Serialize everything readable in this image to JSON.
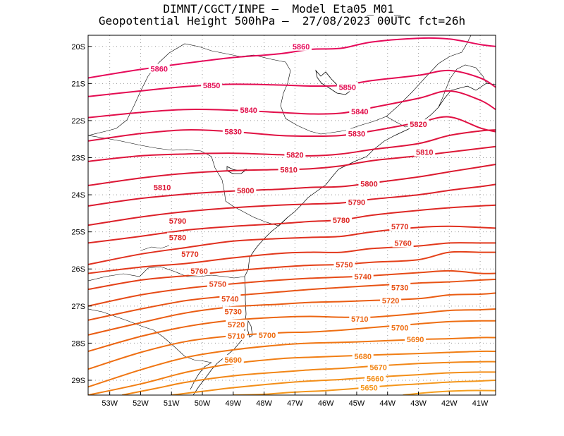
{
  "title": {
    "line1": "DIMNT/CGCT/INPE –  Model Eta05_M01_",
    "line2": "Geopotential Height 500hPa –  27/08/2023 00UTC fct=26h"
  },
  "axes": {
    "lon_labels": [
      "53W",
      "52W",
      "51W",
      "50W",
      "49W",
      "48W",
      "47W",
      "46W",
      "45W",
      "44W",
      "43W",
      "42W",
      "41W"
    ],
    "lat_labels": [
      "20S",
      "21S",
      "22S",
      "23S",
      "24S",
      "25S",
      "26S",
      "27S",
      "28S",
      "29S"
    ],
    "lon_range": [
      -53.7,
      -40.5
    ],
    "lat_range": [
      -19.7,
      -29.4
    ]
  },
  "chart_data": {
    "type": "contour-map",
    "variable": "Geopotential Height 500hPa",
    "interval": 10,
    "contours": [
      {
        "level": 5860,
        "label": "5860",
        "color": "#e60a5a",
        "x": [
          -53.7,
          -52.0,
          -50.5,
          -49.0,
          -47.5,
          -46.5,
          -45.5,
          -44.5,
          -43.0,
          -42.0,
          -41.0,
          -40.5
        ],
        "y": [
          -20.85,
          -20.62,
          -20.45,
          -20.3,
          -20.2,
          -20.08,
          -20.05,
          -19.88,
          -19.78,
          -19.8,
          -19.95,
          -20.0
        ]
      },
      {
        "level": 5850,
        "label": "5850",
        "color": "#e40c52",
        "x": [
          -53.7,
          -52.0,
          -50.5,
          -49.0,
          -47.5,
          -46.5,
          -45.5,
          -44.5,
          -43.0,
          -42.0,
          -41.0,
          -40.5
        ],
        "y": [
          -21.35,
          -21.2,
          -21.08,
          -21.02,
          -21.04,
          -21.07,
          -21.05,
          -20.92,
          -20.78,
          -20.65,
          -20.85,
          -21.1
        ]
      },
      {
        "level": 5840,
        "label": "5840",
        "color": "#e20e4a",
        "x": [
          -53.7,
          -52.0,
          -50.5,
          -49.0,
          -47.5,
          -46.5,
          -45.5,
          -44.5,
          -43.0,
          -42.0,
          -41.0,
          -40.5
        ],
        "y": [
          -21.92,
          -21.78,
          -21.7,
          -21.72,
          -21.78,
          -21.82,
          -21.8,
          -21.65,
          -21.4,
          -21.2,
          -21.45,
          -21.7
        ]
      },
      {
        "level": 5830,
        "label": "5830",
        "color": "#e01143",
        "x": [
          -53.7,
          -52.0,
          -50.5,
          -49.0,
          -47.5,
          -46.5,
          -45.5,
          -44.5,
          -43.0,
          -42.0,
          -41.0,
          -40.5
        ],
        "y": [
          -22.55,
          -22.35,
          -22.25,
          -22.3,
          -22.4,
          -22.42,
          -22.4,
          -22.28,
          -22.05,
          -21.9,
          -22.2,
          -22.3
        ]
      },
      {
        "level": 5820,
        "label": "5820",
        "color": "#de143c",
        "x": [
          -53.7,
          -52.0,
          -50.5,
          -49.0,
          -47.5,
          -46.5,
          -45.5,
          -44.5,
          -43.0,
          -42.0,
          -41.0,
          -40.5
        ],
        "y": [
          -23.1,
          -22.95,
          -22.9,
          -22.88,
          -22.92,
          -22.95,
          -22.9,
          -22.78,
          -22.62,
          -22.4,
          -22.28,
          -22.25
        ]
      },
      {
        "level": 5810,
        "label": "5810",
        "color": "#dc1735",
        "x": [
          -53.7,
          -52.0,
          -50.5,
          -49.0,
          -47.5,
          -46.5,
          -45.5,
          -44.5,
          -43.0,
          -42.0,
          -41.0,
          -40.5
        ],
        "y": [
          -23.75,
          -23.55,
          -23.42,
          -23.35,
          -23.32,
          -23.3,
          -23.22,
          -23.08,
          -22.95,
          -22.85,
          -22.75,
          -22.7
        ]
      },
      {
        "level": 5800,
        "label": "5800",
        "color": "#db1a2f",
        "x": [
          -53.7,
          -52.0,
          -50.5,
          -49.0,
          -47.5,
          -46.5,
          -45.5,
          -44.5,
          -43.0,
          -42.0,
          -41.0,
          -40.5
        ],
        "y": [
          -24.3,
          -24.1,
          -23.98,
          -23.9,
          -23.85,
          -23.8,
          -23.78,
          -23.68,
          -23.52,
          -23.38,
          -23.25,
          -23.18
        ]
      },
      {
        "level": 5790,
        "label": "5790",
        "color": "#dc2029",
        "x": [
          -53.7,
          -52.0,
          -50.5,
          -49.0,
          -47.5,
          -46.5,
          -45.5,
          -44.5,
          -43.0,
          -42.0,
          -41.0,
          -40.5
        ],
        "y": [
          -24.82,
          -24.6,
          -24.45,
          -24.35,
          -24.28,
          -24.25,
          -24.22,
          -24.12,
          -24.0,
          -23.88,
          -23.78,
          -23.72
        ]
      },
      {
        "level": 5780,
        "label": "5780",
        "color": "#de2824",
        "x": [
          -53.7,
          -52.0,
          -50.5,
          -49.0,
          -47.5,
          -46.5,
          -45.5,
          -44.5,
          -43.0,
          -42.0,
          -41.0,
          -40.5
        ],
        "y": [
          -25.3,
          -25.12,
          -24.95,
          -24.85,
          -24.78,
          -24.72,
          -24.68,
          -24.55,
          -24.42,
          -24.35,
          -24.3,
          -24.28
        ]
      },
      {
        "level": 5770,
        "label": "5770",
        "color": "#e0301f",
        "x": [
          -53.7,
          -52.0,
          -50.5,
          -49.0,
          -47.5,
          -46.5,
          -45.5,
          -44.5,
          -43.0,
          -42.0,
          -41.0,
          -40.5
        ],
        "y": [
          -25.88,
          -25.6,
          -25.42,
          -25.25,
          -25.18,
          -25.15,
          -25.12,
          -25.0,
          -24.88,
          -24.85,
          -24.88,
          -24.9
        ]
      },
      {
        "level": 5760,
        "label": "5760",
        "color": "#e2381b",
        "x": [
          -53.7,
          -52.0,
          -50.5,
          -49.0,
          -47.5,
          -46.5,
          -45.5,
          -44.5,
          -43.0,
          -42.0,
          -41.0,
          -40.5
        ],
        "y": [
          -26.12,
          -25.95,
          -25.85,
          -25.7,
          -25.58,
          -25.55,
          -25.55,
          -25.45,
          -25.38,
          -25.3,
          -25.3,
          -25.3
        ]
      },
      {
        "level": 5750,
        "label": "5750",
        "color": "#e44018",
        "x": [
          -53.7,
          -52.0,
          -50.5,
          -49.0,
          -47.5,
          -46.5,
          -45.5,
          -44.5,
          -43.0,
          -42.0,
          -41.0,
          -40.5
        ],
        "y": [
          -26.55,
          -26.3,
          -26.18,
          -26.05,
          -25.95,
          -25.9,
          -25.88,
          -25.82,
          -25.75,
          -25.55,
          -25.55,
          -25.55
        ]
      },
      {
        "level": 5740,
        "label": "5740",
        "color": "#e64a16",
        "x": [
          -53.7,
          -52.0,
          -50.5,
          -49.0,
          -47.5,
          -46.5,
          -45.5,
          -44.5,
          -43.0,
          -42.0,
          -41.0,
          -40.5
        ],
        "y": [
          -27.0,
          -26.7,
          -26.52,
          -26.4,
          -26.3,
          -26.25,
          -26.22,
          -26.18,
          -26.1,
          -26.05,
          -26.12,
          -26.12
        ]
      },
      {
        "level": 5730,
        "label": "5730",
        "color": "#e85314",
        "x": [
          -53.7,
          -52.0,
          -50.5,
          -49.0,
          -47.5,
          -46.5,
          -45.5,
          -44.5,
          -43.0,
          -42.0,
          -41.0,
          -40.5
        ],
        "y": [
          -27.38,
          -27.08,
          -26.85,
          -26.72,
          -26.62,
          -26.55,
          -26.5,
          -26.45,
          -26.38,
          -26.35,
          -26.3,
          -26.28
        ]
      },
      {
        "level": 5720,
        "label": "5720",
        "color": "#ea5c12",
        "x": [
          -53.7,
          -52.0,
          -50.5,
          -49.0,
          -47.5,
          -46.5,
          -45.5,
          -44.5,
          -43.0,
          -42.0,
          -41.0,
          -40.5
        ],
        "y": [
          -27.78,
          -27.45,
          -27.18,
          -27.02,
          -26.95,
          -26.9,
          -26.88,
          -26.85,
          -26.8,
          -26.7,
          -26.68,
          -26.65
        ]
      },
      {
        "level": 5710,
        "label": "5710",
        "color": "#ec6512",
        "x": [
          -53.7,
          -52.0,
          -50.5,
          -49.0,
          -47.5,
          -46.5,
          -45.5,
          -44.5,
          -43.0,
          -42.0,
          -41.0,
          -40.5
        ],
        "y": [
          -28.22,
          -27.82,
          -27.55,
          -27.38,
          -27.3,
          -27.28,
          -27.3,
          -27.3,
          -27.2,
          -27.12,
          -27.1,
          -27.08
        ]
      },
      {
        "level": 5700,
        "label": "5700",
        "color": "#ee6e12",
        "x": [
          -53.7,
          -52.0,
          -50.5,
          -49.0,
          -47.5,
          -46.5,
          -45.5,
          -44.5,
          -43.0,
          -42.0,
          -41.0,
          -40.5
        ],
        "y": [
          -28.7,
          -28.25,
          -27.95,
          -27.8,
          -27.72,
          -27.7,
          -27.65,
          -27.58,
          -27.48,
          -27.42,
          -27.4,
          -27.4
        ]
      },
      {
        "level": 5690,
        "label": "5690",
        "color": "#f07613",
        "x": [
          -53.7,
          -52.0,
          -50.5,
          -49.0,
          -47.5,
          -46.5,
          -45.5,
          -44.5,
          -43.0,
          -42.0,
          -41.0,
          -40.5
        ],
        "y": [
          -29.18,
          -28.72,
          -28.38,
          -28.18,
          -28.05,
          -28.0,
          -27.98,
          -27.95,
          -27.9,
          -27.88,
          -27.85,
          -27.85
        ]
      },
      {
        "level": 5680,
        "label": "5680",
        "color": "#f17e14",
        "x": [
          -53.7,
          -52.0,
          -50.5,
          -49.0,
          -47.5,
          -46.5,
          -45.5,
          -44.5,
          -43.0,
          -42.0,
          -41.0,
          -40.5
        ],
        "y": [
          -29.4,
          -29.1,
          -28.78,
          -28.55,
          -28.42,
          -28.38,
          -28.35,
          -28.32,
          -28.28,
          -28.25,
          -28.22,
          -28.22
        ]
      },
      {
        "level": 5670,
        "label": "5670",
        "color": "#f28616",
        "x": [
          -52.6,
          -51.5,
          -50.5,
          -49.0,
          -47.5,
          -46.5,
          -45.5,
          -44.5,
          -43.0,
          -42.0,
          -41.0,
          -40.5
        ],
        "y": [
          -29.4,
          -29.22,
          -29.05,
          -28.88,
          -28.78,
          -28.72,
          -28.68,
          -28.62,
          -28.55,
          -28.52,
          -28.5,
          -28.5
        ]
      },
      {
        "level": 5660,
        "label": "5660",
        "color": "#f38e18",
        "x": [
          -51.0,
          -50.0,
          -49.0,
          -47.5,
          -46.5,
          -45.5,
          -44.5,
          -43.0,
          -42.0,
          -41.0,
          -40.5
        ],
        "y": [
          -29.4,
          -29.3,
          -29.2,
          -29.08,
          -29.02,
          -28.98,
          -28.92,
          -28.85,
          -28.8,
          -28.78,
          -28.78
        ]
      },
      {
        "level": 5650,
        "label": "5650",
        "color": "#f4961b",
        "x": [
          -49.0,
          -48.0,
          -47.0,
          -46.0,
          -45.0,
          -44.0,
          -43.0,
          -42.0,
          -41.0,
          -40.5
        ],
        "y": [
          -29.4,
          -29.38,
          -29.32,
          -29.28,
          -29.22,
          -29.15,
          -29.1,
          -29.05,
          -29.02,
          -29.0
        ]
      },
      {
        "level": 5640,
        "label": "",
        "color": "#f59e1e",
        "x": [
          -43.5,
          -42.5,
          -41.5,
          -40.5
        ],
        "y": [
          -29.4,
          -29.32,
          -29.28,
          -29.28
        ]
      }
    ],
    "labels": [
      {
        "text": "5860",
        "lon": -46.8,
        "lat": -20.0,
        "color": "#e60a5a"
      },
      {
        "text": "5860",
        "lon": -51.4,
        "lat": -20.6,
        "color": "#e60a5a"
      },
      {
        "text": "5850",
        "lon": -49.7,
        "lat": -21.05,
        "color": "#e40c52"
      },
      {
        "text": "5850",
        "lon": -45.3,
        "lat": -21.1,
        "color": "#e40c52"
      },
      {
        "text": "5840",
        "lon": -48.5,
        "lat": -21.72,
        "color": "#e20e4a"
      },
      {
        "text": "5840",
        "lon": -44.9,
        "lat": -21.75,
        "color": "#e20e4a"
      },
      {
        "text": "5830",
        "lon": -49.0,
        "lat": -22.3,
        "color": "#e01143"
      },
      {
        "text": "5830",
        "lon": -45.0,
        "lat": -22.35,
        "color": "#e01143"
      },
      {
        "text": "5820",
        "lon": -43.0,
        "lat": -22.1,
        "color": "#de143c"
      },
      {
        "text": "5820",
        "lon": -47.0,
        "lat": -22.92,
        "color": "#de143c"
      },
      {
        "text": "5810",
        "lon": -42.8,
        "lat": -22.85,
        "color": "#dc1735"
      },
      {
        "text": "5810",
        "lon": -47.2,
        "lat": -23.32,
        "color": "#dc1735"
      },
      {
        "text": "5810",
        "lon": -51.3,
        "lat": -23.8,
        "color": "#dc1735"
      },
      {
        "text": "5800",
        "lon": -48.6,
        "lat": -23.88,
        "color": "#db1a2f"
      },
      {
        "text": "5800",
        "lon": -44.6,
        "lat": -23.7,
        "color": "#db1a2f"
      },
      {
        "text": "5790",
        "lon": -45.0,
        "lat": -24.2,
        "color": "#dc2029"
      },
      {
        "text": "5790",
        "lon": -50.8,
        "lat": -24.7,
        "color": "#dc2029"
      },
      {
        "text": "5780",
        "lon": -45.5,
        "lat": -24.68,
        "color": "#de2824"
      },
      {
        "text": "5780",
        "lon": -50.8,
        "lat": -25.15,
        "color": "#de2824"
      },
      {
        "text": "5770",
        "lon": -43.6,
        "lat": -24.85,
        "color": "#e0301f"
      },
      {
        "text": "5770",
        "lon": -50.4,
        "lat": -25.6,
        "color": "#e0301f"
      },
      {
        "text": "5760",
        "lon": -43.5,
        "lat": -25.3,
        "color": "#e2381b"
      },
      {
        "text": "5760",
        "lon": -50.1,
        "lat": -26.05,
        "color": "#e2381b"
      },
      {
        "text": "5750",
        "lon": -45.4,
        "lat": -25.88,
        "color": "#e44018"
      },
      {
        "text": "5750",
        "lon": -49.5,
        "lat": -26.4,
        "color": "#e44018"
      },
      {
        "text": "5740",
        "lon": -44.8,
        "lat": -26.2,
        "color": "#e64a16"
      },
      {
        "text": "5740",
        "lon": -49.1,
        "lat": -26.8,
        "color": "#e64a16"
      },
      {
        "text": "5730",
        "lon": -43.6,
        "lat": -26.5,
        "color": "#e85314"
      },
      {
        "text": "5730",
        "lon": -49.0,
        "lat": -27.15,
        "color": "#e85314"
      },
      {
        "text": "5720",
        "lon": -43.9,
        "lat": -26.85,
        "color": "#ea5c12"
      },
      {
        "text": "5720",
        "lon": -48.9,
        "lat": -27.5,
        "color": "#ea5c12"
      },
      {
        "text": "5710",
        "lon": -44.9,
        "lat": -27.35,
        "color": "#ec6512"
      },
      {
        "text": "5710",
        "lon": -48.9,
        "lat": -27.8,
        "color": "#ec6512"
      },
      {
        "text": "5700",
        "lon": -43.6,
        "lat": -27.58,
        "color": "#ee6e12"
      },
      {
        "text": "5700",
        "lon": -47.9,
        "lat": -27.78,
        "color": "#ee6e12"
      },
      {
        "text": "5690",
        "lon": -43.1,
        "lat": -27.9,
        "color": "#f07613"
      },
      {
        "text": "5690",
        "lon": -49.0,
        "lat": -28.45,
        "color": "#f07613"
      },
      {
        "text": "5680",
        "lon": -44.8,
        "lat": -28.35,
        "color": "#f17e14"
      },
      {
        "text": "5670",
        "lon": -44.3,
        "lat": -28.65,
        "color": "#f28616"
      },
      {
        "text": "5660",
        "lon": -44.4,
        "lat": -28.95,
        "color": "#f38e18"
      },
      {
        "text": "5650",
        "lon": -44.6,
        "lat": -29.2,
        "color": "#f4961b"
      }
    ]
  }
}
